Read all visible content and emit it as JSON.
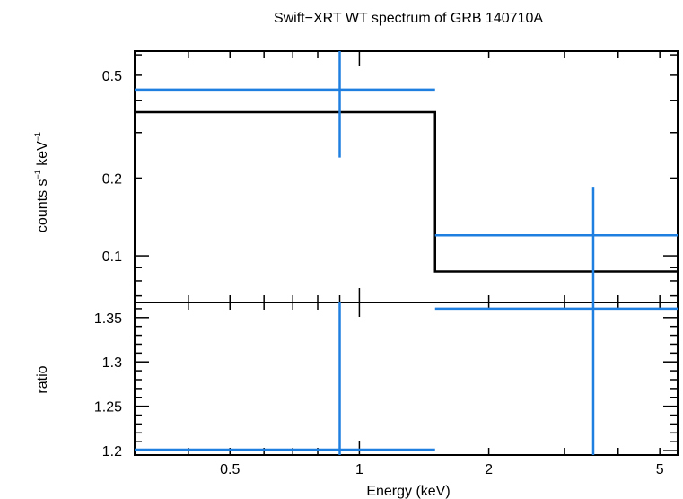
{
  "chart_data": {
    "type": "scatter",
    "title": "Swift−XRT WT spectrum of GRB 140710A",
    "xlabel": "Energy (keV)",
    "x_scale": "log",
    "xlim": [
      0.3,
      5.5
    ],
    "x_ticks": [
      "0.5",
      "1",
      "2",
      "5"
    ],
    "colors": {
      "data": "#1f7fe0",
      "model": "#000000"
    },
    "panels": [
      {
        "id": "spectrum",
        "ylabel": {
          "main": "counts s",
          "exp1": "−1",
          "mid": " keV",
          "exp2": "−1"
        },
        "y_scale": "log",
        "ylim": [
          0.066,
          0.62
        ],
        "y_ticks": [
          "0.5",
          "0.2",
          "0.1"
        ],
        "data_points": [
          {
            "x": 0.9,
            "x_lo": 0.3,
            "x_hi": 1.5,
            "y": 0.44,
            "y_lo": 0.24,
            "y_hi": 0.62
          },
          {
            "x": 3.5,
            "x_lo": 1.5,
            "x_hi": 5.5,
            "y": 0.12,
            "y_lo": 0.066,
            "y_hi": 0.185
          }
        ],
        "model_steps": [
          {
            "x_lo": 0.3,
            "x_hi": 1.5,
            "y": 0.36
          },
          {
            "x_lo": 1.5,
            "x_hi": 5.5,
            "y": 0.087
          }
        ]
      },
      {
        "id": "ratio",
        "ylabel": {
          "main": "ratio"
        },
        "y_scale": "linear",
        "ylim": [
          1.195,
          1.367
        ],
        "y_ticks": [
          "1.35",
          "1.3",
          "1.25",
          "1.2"
        ],
        "data_points": [
          {
            "x": 0.9,
            "x_lo": 0.3,
            "x_hi": 1.5,
            "y": 1.2,
            "y_lo": 1.195,
            "y_hi": 1.367
          },
          {
            "x": 3.5,
            "x_lo": 1.5,
            "x_hi": 5.5,
            "y": 1.36,
            "y_lo": 1.195,
            "y_hi": 1.367
          }
        ]
      }
    ]
  }
}
